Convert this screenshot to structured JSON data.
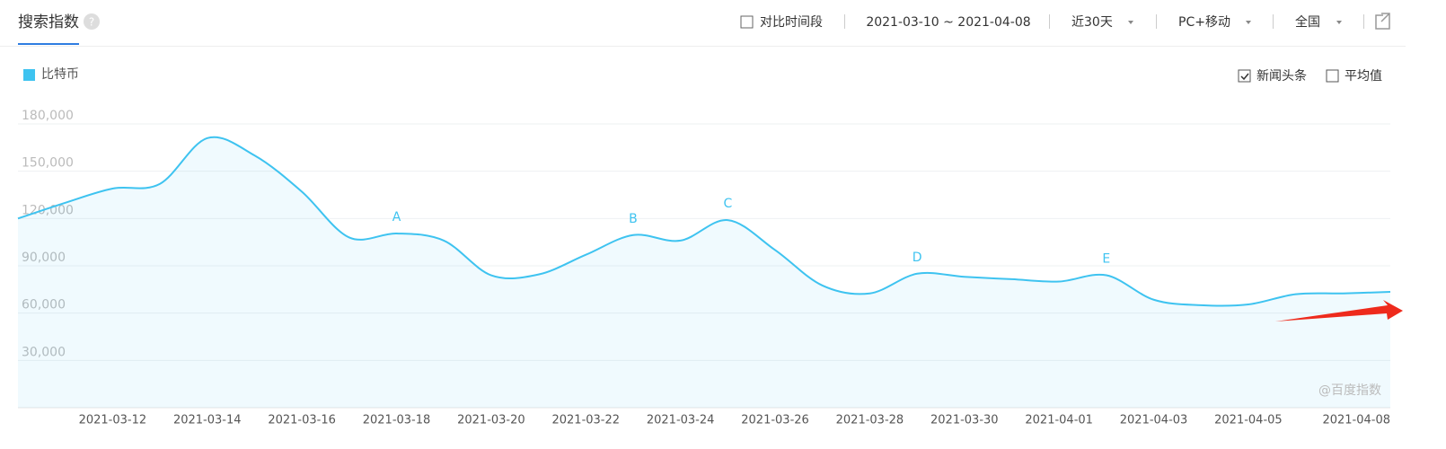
{
  "header": {
    "title": "搜索指数",
    "help": "?",
    "compare": "对比时间段",
    "range": "2021-03-10 ~ 2021-04-08",
    "period": "近30天",
    "device": "PC+移动",
    "region": "全国"
  },
  "options": [
    {
      "label": "新闻头条",
      "checked": true
    },
    {
      "label": "平均值",
      "checked": false
    }
  ],
  "watermark": "@百度指数",
  "chart_data": {
    "type": "line",
    "categories": [
      null,
      null,
      "2021-03-12",
      null,
      "2021-03-14",
      null,
      "2021-03-16",
      null,
      "2021-03-18",
      null,
      "2021-03-20",
      null,
      "2021-03-22",
      null,
      "2021-03-24",
      null,
      "2021-03-26",
      null,
      "2021-03-28",
      null,
      "2021-03-30",
      null,
      "2021-04-01",
      null,
      "2021-04-03",
      null,
      "2021-04-05",
      null,
      null,
      "2021-04-08"
    ],
    "series": [
      {
        "name": "比特币",
        "color": "#3ec3f0",
        "values": [
          120000,
          130000,
          139000,
          142000,
          171000,
          160000,
          137000,
          108000,
          110500,
          106000,
          84000,
          84500,
          97000,
          109500,
          106000,
          119000,
          100000,
          77500,
          72500,
          85000,
          83000,
          81500,
          80000,
          84000,
          68500,
          65000,
          65500,
          72000,
          72500,
          73500
        ]
      }
    ],
    "annotations": [
      {
        "text": "A",
        "x": "2021-03-18"
      },
      {
        "text": "B",
        "x": "2021-03-23"
      },
      {
        "text": "C",
        "x": "2021-03-25"
      },
      {
        "text": "D",
        "x": "2021-03-29"
      },
      {
        "text": "E",
        "x": "2021-04-02"
      }
    ],
    "ylim": [
      0,
      180000
    ],
    "yticks": [
      {
        "value": 30000,
        "label": "30,000"
      },
      {
        "value": 60000,
        "label": "60,000"
      },
      {
        "value": 90000,
        "label": "90,000"
      },
      {
        "value": 120000,
        "label": "120,000"
      },
      {
        "value": 150000,
        "label": "150,000"
      },
      {
        "value": 180000,
        "label": "180,000"
      }
    ],
    "grid": true
  }
}
